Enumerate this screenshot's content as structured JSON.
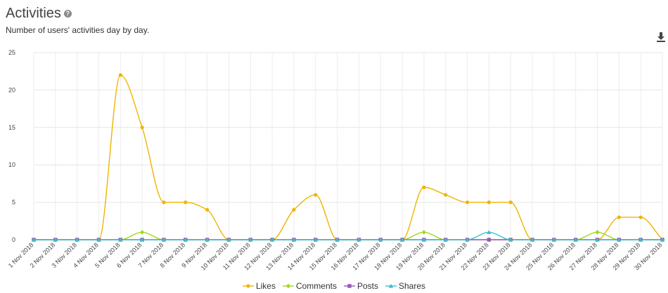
{
  "header": {
    "title": "Activities",
    "subtitle": "Number of users' activities day by day."
  },
  "icons": {
    "help": "help-icon",
    "download": "download-icon"
  },
  "chart_data": {
    "type": "line",
    "title": "",
    "xlabel": "",
    "ylabel": "",
    "ylim": [
      0,
      25
    ],
    "yticks": [
      0,
      5,
      10,
      15,
      20,
      25
    ],
    "grid": true,
    "legend_position": "bottom-center",
    "categories": [
      "1 Nov 2018",
      "2 Nov 2018",
      "3 Nov 2018",
      "4 Nov 2018",
      "5 Nov 2018",
      "6 Nov 2018",
      "7 Nov 2018",
      "8 Nov 2018",
      "9 Nov 2018",
      "10 Nov 2018",
      "11 Nov 2018",
      "12 Nov 2018",
      "13 Nov 2018",
      "14 Nov 2018",
      "15 Nov 2018",
      "16 Nov 2018",
      "17 Nov 2018",
      "18 Nov 2018",
      "19 Nov 2018",
      "20 Nov 2018",
      "21 Nov 2018",
      "22 Nov 2018",
      "23 Nov 2018",
      "24 Nov 2018",
      "25 Nov 2018",
      "26 Nov 2018",
      "27 Nov 2018",
      "28 Nov 2018",
      "29 Nov 2018",
      "30 Nov 2018"
    ],
    "series": [
      {
        "name": "Likes",
        "color": "#f0b400",
        "marker": "circle",
        "values": [
          0,
          0,
          0,
          0,
          22,
          15,
          5,
          5,
          4,
          0,
          0,
          0,
          4,
          6,
          0,
          0,
          0,
          0,
          7,
          6,
          5,
          5,
          5,
          0,
          0,
          0,
          0,
          3,
          3,
          0
        ]
      },
      {
        "name": "Comments",
        "color": "#9fd81a",
        "marker": "diamond",
        "values": [
          0,
          0,
          0,
          0,
          0,
          1,
          0,
          0,
          0,
          0,
          0,
          0,
          0,
          0,
          0,
          0,
          0,
          0,
          1,
          0,
          0,
          0,
          0,
          0,
          0,
          0,
          1,
          0,
          0,
          0
        ]
      },
      {
        "name": "Posts",
        "color": "#9b59b6",
        "marker": "square",
        "values": [
          0,
          0,
          0,
          0,
          0,
          0,
          0,
          0,
          0,
          0,
          0,
          0,
          0,
          0,
          0,
          0,
          0,
          0,
          0,
          0,
          0,
          0,
          0,
          0,
          0,
          0,
          0,
          0,
          0,
          0
        ]
      },
      {
        "name": "Shares",
        "color": "#3bbfcf",
        "marker": "triangle",
        "values": [
          0,
          0,
          0,
          0,
          0,
          0,
          0,
          0,
          0,
          0,
          0,
          0,
          0,
          0,
          0,
          0,
          0,
          0,
          0,
          0,
          0,
          1,
          0,
          0,
          0,
          0,
          0,
          0,
          0,
          0
        ]
      }
    ]
  }
}
